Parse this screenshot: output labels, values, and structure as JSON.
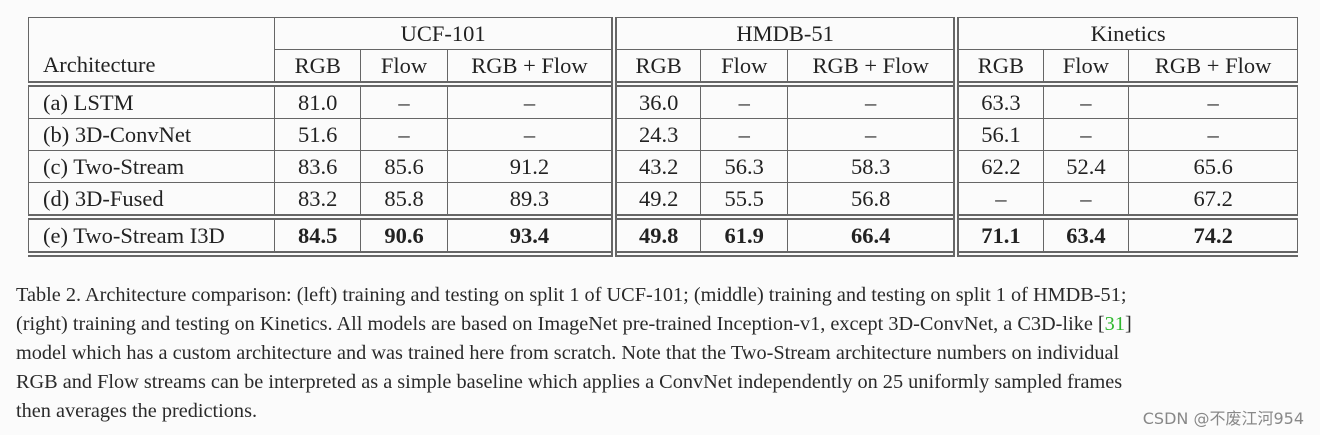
{
  "table": {
    "corner": "Architecture",
    "groups": [
      "UCF-101",
      "HMDB-51",
      "Kinetics"
    ],
    "subcolumns": [
      "RGB",
      "Flow",
      "RGB + Flow"
    ],
    "rows": [
      [
        "(a) LSTM",
        "81.0",
        "–",
        "–",
        "36.0",
        "–",
        "–",
        "63.3",
        "–",
        "–"
      ],
      [
        "(b) 3D-ConvNet",
        "51.6",
        "–",
        "–",
        "24.3",
        "–",
        "–",
        "56.1",
        "–",
        "–"
      ],
      [
        "(c) Two-Stream",
        "83.6",
        "85.6",
        "91.2",
        "43.2",
        "56.3",
        "58.3",
        "62.2",
        "52.4",
        "65.6"
      ],
      [
        "(d) 3D-Fused",
        "83.2",
        "85.8",
        "89.3",
        "49.2",
        "55.5",
        "56.8",
        "–",
        "–",
        "67.2"
      ]
    ],
    "final_row": [
      "(e) Two-Stream I3D",
      "84.5",
      "90.6",
      "93.4",
      "49.8",
      "61.9",
      "66.4",
      "71.1",
      "63.4",
      "74.2"
    ]
  },
  "caption": {
    "lines": [
      "Table 2. Architecture comparison: (left) training and testing on split 1 of UCF-101; (middle) training and testing on split 1 of HMDB-51;",
      [
        "(right) training and testing on Kinetics. All models are based on ImageNet pre-trained Inception-v1, except 3D-ConvNet, a C3D-like [",
        "31",
        "]"
      ],
      "model which has a custom architecture and was trained here from scratch. Note that the Two-Stream architecture numbers on individual",
      "RGB and Flow streams can be interpreted as a simple baseline which applies a ConvNet independently on 25 uniformly sampled frames",
      "then averages the predictions."
    ]
  },
  "watermark": "CSDN @不废江河954"
}
